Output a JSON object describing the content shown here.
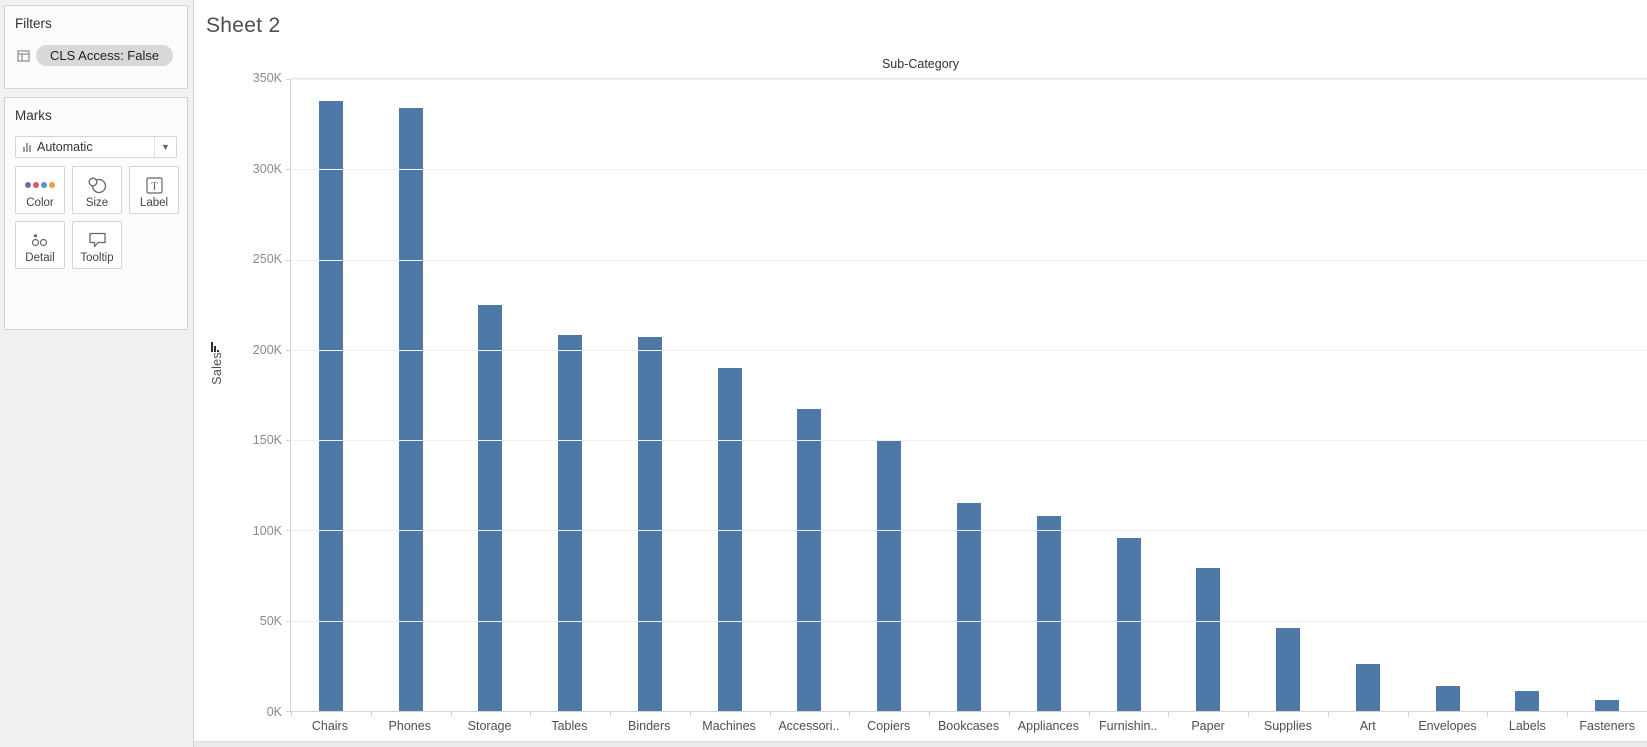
{
  "sidebar": {
    "filters": {
      "title": "Filters",
      "pill": "CLS Access: False"
    },
    "marks": {
      "title": "Marks",
      "mark_type": "Automatic",
      "buttons": [
        {
          "label": "Color"
        },
        {
          "label": "Size"
        },
        {
          "label": "Label"
        },
        {
          "label": "Detail"
        },
        {
          "label": "Tooltip"
        }
      ]
    }
  },
  "sheet": {
    "title": "Sheet 2"
  },
  "chart_data": {
    "type": "bar",
    "title": "Sub-Category",
    "ylabel": "Sales",
    "sort": "descending",
    "categories": [
      "Chairs",
      "Phones",
      "Storage",
      "Tables",
      "Binders",
      "Machines",
      "Accessori..",
      "Copiers",
      "Bookcases",
      "Appliances",
      "Furnishin..",
      "Paper",
      "Supplies",
      "Art",
      "Envelopes",
      "Labels",
      "Fasteners"
    ],
    "values": [
      338000,
      334000,
      225000,
      208000,
      207000,
      190000,
      167000,
      150000,
      115000,
      108000,
      96000,
      79000,
      46000,
      26000,
      14000,
      11000,
      6000
    ],
    "ylim": [
      0,
      350000
    ],
    "ytick_labels": [
      "350K",
      "300K",
      "250K",
      "200K",
      "150K",
      "100K",
      "50K",
      "0K"
    ],
    "bar_color": "#4e79a7",
    "grid": "horizontal-faint",
    "legend": "none"
  }
}
